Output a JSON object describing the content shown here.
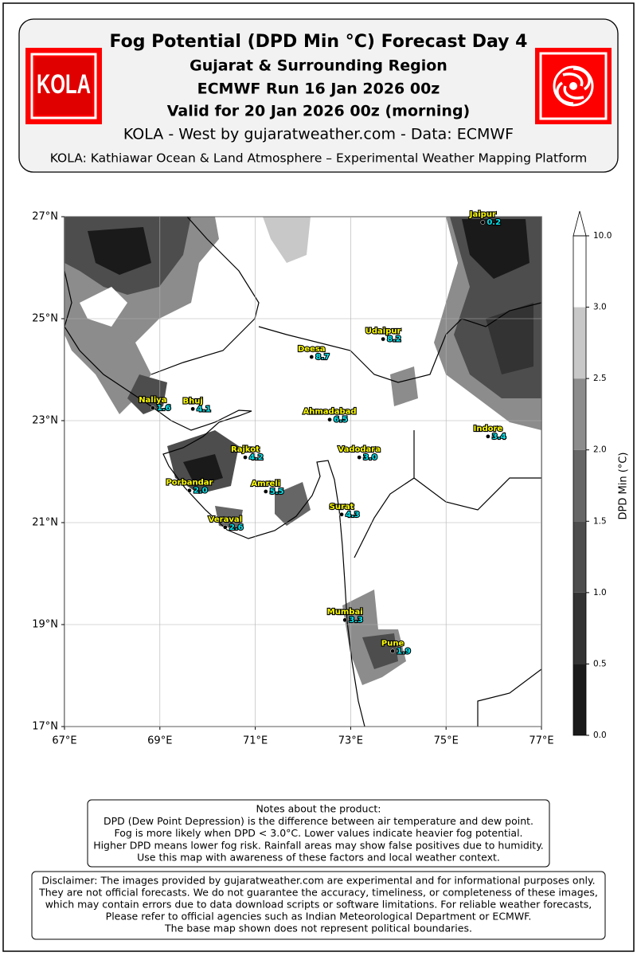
{
  "header": {
    "title": "Fog Potential (DPD Min °C) Forecast Day 4",
    "subtitles": [
      "Gujarat & Surrounding Region",
      "ECMWF Run 16 Jan 2026 00z",
      "Valid for 20 Jan 2026 00z (morning)"
    ],
    "credit": "KOLA - West by gujaratweather.com  -  Data: ECMWF",
    "platform": "KOLA: Kathiawar Ocean & Land Atmosphere – Experimental Weather Mapping Platform",
    "logo_text": "KOLA"
  },
  "map": {
    "xlim": [
      67,
      77
    ],
    "ylim": [
      17,
      27
    ],
    "xticks": [
      {
        "value": 67,
        "label": "67°E"
      },
      {
        "value": 69,
        "label": "69°E"
      },
      {
        "value": 71,
        "label": "71°E"
      },
      {
        "value": 73,
        "label": "73°E"
      },
      {
        "value": 75,
        "label": "75°E"
      },
      {
        "value": 77,
        "label": "77°E"
      }
    ],
    "yticks": [
      {
        "value": 17,
        "label": "17°N"
      },
      {
        "value": 19,
        "label": "19°N"
      },
      {
        "value": 21,
        "label": "21°N"
      },
      {
        "value": 23,
        "label": "23°N"
      },
      {
        "value": 25,
        "label": "25°N"
      },
      {
        "value": 27,
        "label": "27°N"
      }
    ],
    "grid": true,
    "cities": {
      "names": [
        "Jaipur",
        "Udaipur",
        "Deesa",
        "Naliya",
        "Bhuj",
        "Ahmadabad",
        "Indore",
        "Rajkot",
        "Vadodara",
        "Porbandar",
        "Amreli",
        "Surat",
        "Veraval",
        "Mumbai",
        "Pune"
      ],
      "lon": [
        75.77,
        73.68,
        72.18,
        68.85,
        69.69,
        72.56,
        75.88,
        70.79,
        73.18,
        69.62,
        71.22,
        72.81,
        70.37,
        72.88,
        73.88
      ],
      "lat": [
        26.89,
        24.6,
        24.25,
        23.25,
        23.23,
        23.02,
        22.69,
        22.28,
        22.28,
        21.63,
        21.61,
        21.16,
        20.91,
        19.09,
        18.48
      ],
      "values": [
        0.2,
        8.2,
        8.7,
        1.6,
        4.1,
        6.5,
        3.4,
        4.2,
        3.0,
        2.0,
        5.5,
        4.3,
        2.6,
        3.3,
        1.9
      ],
      "value_labels": [
        "0.2",
        "8.2",
        "8.7",
        "1.6",
        "4.1",
        "6.5",
        "3.4",
        "4.2",
        "3.0",
        "2.0",
        "5.5",
        "4.3",
        "2.6",
        "3.3",
        "1.9"
      ]
    },
    "colorbar": {
      "label": "DPD Min (°C)",
      "ticks": [
        {
          "value": 0,
          "label": "0.0"
        },
        {
          "value": 0.5,
          "label": "0.5"
        },
        {
          "value": 1,
          "label": "1.0"
        },
        {
          "value": 1.5,
          "label": "1.5"
        },
        {
          "value": 2,
          "label": "2.0"
        },
        {
          "value": 2.5,
          "label": "2.5"
        },
        {
          "value": 3,
          "label": "3.0"
        },
        {
          "value": 10,
          "label": "10.0"
        }
      ],
      "colors": [
        "#1a1a1a",
        "#333333",
        "#4d4d4d",
        "#666666",
        "#8c8c8c",
        "#c8c8c8",
        "#ffffff"
      ]
    }
  },
  "notes": {
    "lines": [
      "Notes about the product:",
      "DPD (Dew Point Depression) is the difference between air temperature and dew point.",
      "Fog is more likely when DPD < 3.0°C. Lower values indicate heavier fog potential.",
      "Higher DPD means lower fog risk. Rainfall areas may show false positives due to humidity.",
      "Use this map with awareness of these factors and local weather context."
    ]
  },
  "disclaimer": {
    "lines": [
      "Disclaimer: The images provided by gujaratweather.com are experimental and for informational purposes only.",
      "They are not official forecasts. We do not guarantee the accuracy, timeliness, or completeness of these images,",
      "which may contain errors due to data download scripts or software limitations. For reliable weather forecasts,",
      "Please refer to official agencies such as Indian Meteorological Department or ECMWF.",
      "The base map shown does not represent political boundaries."
    ]
  }
}
